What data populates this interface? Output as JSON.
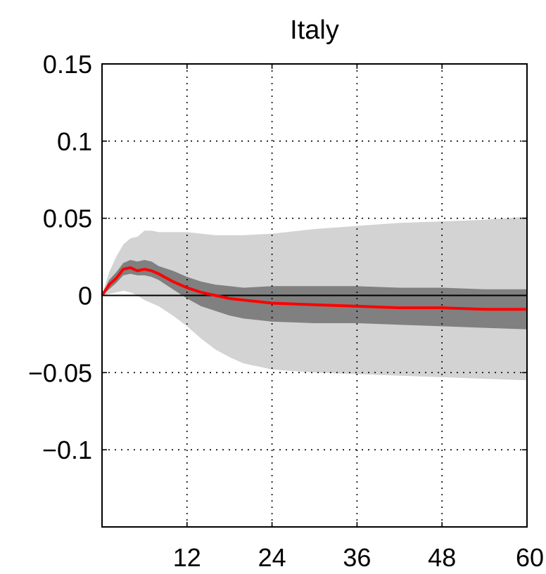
{
  "chart_data": {
    "type": "line",
    "title": "Italy",
    "xlabel": "",
    "ylabel": "",
    "xlim": [
      0,
      60
    ],
    "ylim": [
      -0.15,
      0.15
    ],
    "grid": true,
    "xticks": [
      12,
      24,
      36,
      48,
      60
    ],
    "xtick_labels": [
      "12",
      "24",
      "36",
      "48",
      "60"
    ],
    "yticks": [
      0.15,
      0.1,
      0.05,
      0,
      -0.05,
      -0.1
    ],
    "ytick_labels": [
      "0.15",
      "0.1",
      "0.05",
      "0",
      "−0.05",
      "−0.1"
    ],
    "x": [
      0,
      1,
      2,
      3,
      4,
      5,
      6,
      7,
      8,
      10,
      12,
      14,
      16,
      18,
      20,
      24,
      30,
      36,
      42,
      48,
      54,
      60
    ],
    "series": [
      {
        "color": "#ff0000",
        "values": [
          0.0,
          0.007,
          0.011,
          0.017,
          0.018,
          0.016,
          0.017,
          0.016,
          0.014,
          0.009,
          0.005,
          0.002,
          0.0,
          -0.002,
          -0.003,
          -0.005,
          -0.006,
          -0.007,
          -0.008,
          -0.008,
          -0.009,
          -0.009
        ]
      }
    ],
    "bands": [
      {
        "color": "#d3d3d3",
        "lower": [
          0.0,
          0.001,
          0.002,
          0.003,
          0.002,
          0.0,
          -0.003,
          -0.005,
          -0.007,
          -0.013,
          -0.02,
          -0.028,
          -0.035,
          -0.04,
          -0.044,
          -0.048,
          -0.05,
          -0.051,
          -0.052,
          -0.053,
          -0.054,
          -0.055
        ],
        "upper": [
          0.0,
          0.015,
          0.025,
          0.033,
          0.037,
          0.038,
          0.042,
          0.042,
          0.041,
          0.041,
          0.041,
          0.04,
          0.039,
          0.039,
          0.039,
          0.04,
          0.043,
          0.045,
          0.047,
          0.048,
          0.049,
          0.051
        ]
      },
      {
        "color": "#808080",
        "lower": [
          0.0,
          0.004,
          0.008,
          0.013,
          0.014,
          0.013,
          0.013,
          0.012,
          0.01,
          0.004,
          -0.002,
          -0.007,
          -0.01,
          -0.013,
          -0.015,
          -0.017,
          -0.018,
          -0.018,
          -0.019,
          -0.02,
          -0.021,
          -0.022
        ],
        "upper": [
          0.0,
          0.01,
          0.015,
          0.021,
          0.023,
          0.022,
          0.023,
          0.022,
          0.019,
          0.016,
          0.012,
          0.009,
          0.007,
          0.006,
          0.005,
          0.006,
          0.006,
          0.006,
          0.005,
          0.005,
          0.004,
          0.004
        ]
      }
    ],
    "zero_line": true
  }
}
